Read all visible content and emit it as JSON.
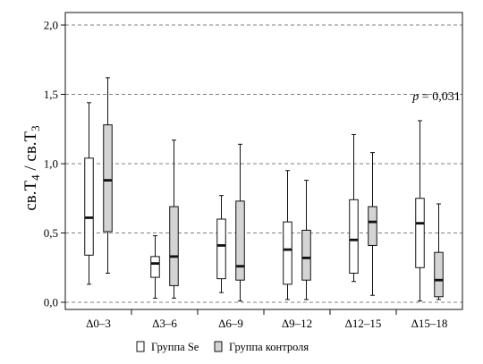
{
  "chart_data": {
    "type": "boxplot",
    "ylabel": "св.T₄ / св.T₃",
    "ylim": [
      0,
      2.0
    ],
    "yticks": [
      "0,0",
      "0,5",
      "1,0",
      "1,5",
      "2,0"
    ],
    "ytick_values": [
      0,
      0.5,
      1.0,
      1.5,
      2.0
    ],
    "grid": "dashed horizontal at major ticks",
    "categories": [
      "Δ0–3",
      "Δ3–6",
      "Δ6–9",
      "Δ9–12",
      "Δ12–15",
      "Δ15–18"
    ],
    "series": [
      {
        "name": "Группа Se",
        "color": "#ffffff",
        "boxes": [
          {
            "min": 0.13,
            "q1": 0.34,
            "median": 0.61,
            "q3": 1.04,
            "max": 1.44
          },
          {
            "min": 0.03,
            "q1": 0.18,
            "median": 0.28,
            "q3": 0.33,
            "max": 0.48
          },
          {
            "min": 0.07,
            "q1": 0.17,
            "median": 0.41,
            "q3": 0.6,
            "max": 0.77
          },
          {
            "min": 0.02,
            "q1": 0.13,
            "median": 0.38,
            "q3": 0.58,
            "max": 0.95
          },
          {
            "min": 0.15,
            "q1": 0.21,
            "median": 0.45,
            "q3": 0.74,
            "max": 1.21
          },
          {
            "min": 0.01,
            "q1": 0.25,
            "median": 0.57,
            "q3": 0.75,
            "max": 1.31
          }
        ]
      },
      {
        "name": "Группа контроля",
        "color": "#d4d4d4",
        "boxes": [
          {
            "min": 0.21,
            "q1": 0.51,
            "median": 0.88,
            "q3": 1.28,
            "max": 1.62
          },
          {
            "min": 0.03,
            "q1": 0.12,
            "median": 0.33,
            "q3": 0.69,
            "max": 1.17
          },
          {
            "min": 0.01,
            "q1": 0.16,
            "median": 0.26,
            "q3": 0.73,
            "max": 1.14
          },
          {
            "min": 0.02,
            "q1": 0.16,
            "median": 0.32,
            "q3": 0.52,
            "max": 0.88
          },
          {
            "min": 0.05,
            "q1": 0.41,
            "median": 0.58,
            "q3": 0.69,
            "max": 1.08
          },
          {
            "min": 0.02,
            "q1": 0.04,
            "median": 0.16,
            "q3": 0.36,
            "max": 0.71
          }
        ]
      }
    ],
    "annotations": [
      {
        "text": "p = 0,031",
        "italic_part": "p",
        "category": "Δ15–18",
        "y": 1.4
      }
    ],
    "legend": {
      "placement": "bottom-center",
      "entries": [
        "Группа Se",
        "Группа контроля"
      ]
    }
  }
}
